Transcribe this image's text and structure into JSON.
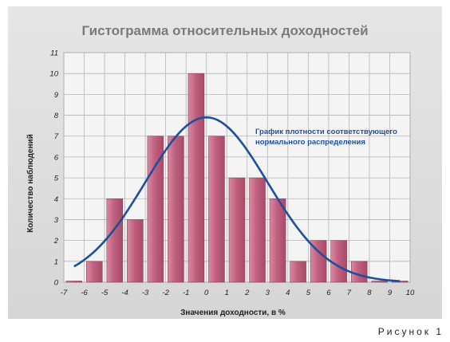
{
  "chart_data": {
    "type": "bar",
    "title": "Гистограмма относительных доходностей",
    "xlabel": "Значения доходности, в %",
    "ylabel": "Количество наблюдений",
    "xlim": [
      -7,
      10
    ],
    "ylim": [
      0,
      11
    ],
    "x_ticks": [
      "-7",
      "-6",
      "-5",
      "-4",
      "-3",
      "-2",
      "-1",
      "0",
      "1",
      "2",
      "3",
      "4",
      "5",
      "6",
      "7",
      "8",
      "9",
      "10"
    ],
    "y_ticks": [
      "0",
      "1",
      "2",
      "3",
      "4",
      "5",
      "6",
      "7",
      "8",
      "9",
      "10",
      "11"
    ],
    "grid": true,
    "bar_color": "#c0607f",
    "curve_color": "#1f4f9a",
    "bars": [
      {
        "x": -7,
        "value": 0
      },
      {
        "x": -6,
        "value": 1
      },
      {
        "x": -5,
        "value": 4
      },
      {
        "x": -4,
        "value": 3
      },
      {
        "x": -3,
        "value": 7
      },
      {
        "x": -2,
        "value": 7
      },
      {
        "x": -1,
        "value": 10
      },
      {
        "x": 0,
        "value": 7
      },
      {
        "x": 1,
        "value": 5
      },
      {
        "x": 2,
        "value": 5
      },
      {
        "x": 3,
        "value": 4
      },
      {
        "x": 4,
        "value": 1
      },
      {
        "x": 5,
        "value": 2
      },
      {
        "x": 6,
        "value": 2
      },
      {
        "x": 7,
        "value": 1
      },
      {
        "x": 8,
        "value": 0
      },
      {
        "x": 9,
        "value": 0
      }
    ],
    "curve": {
      "label_line1": "График плотности соответствующего",
      "label_line2": "нормального распределения",
      "mean": 0,
      "sd": 3,
      "peak": 7.9,
      "from": -6.5,
      "to": 9.5
    }
  },
  "figure_label": "Рисунок 1"
}
